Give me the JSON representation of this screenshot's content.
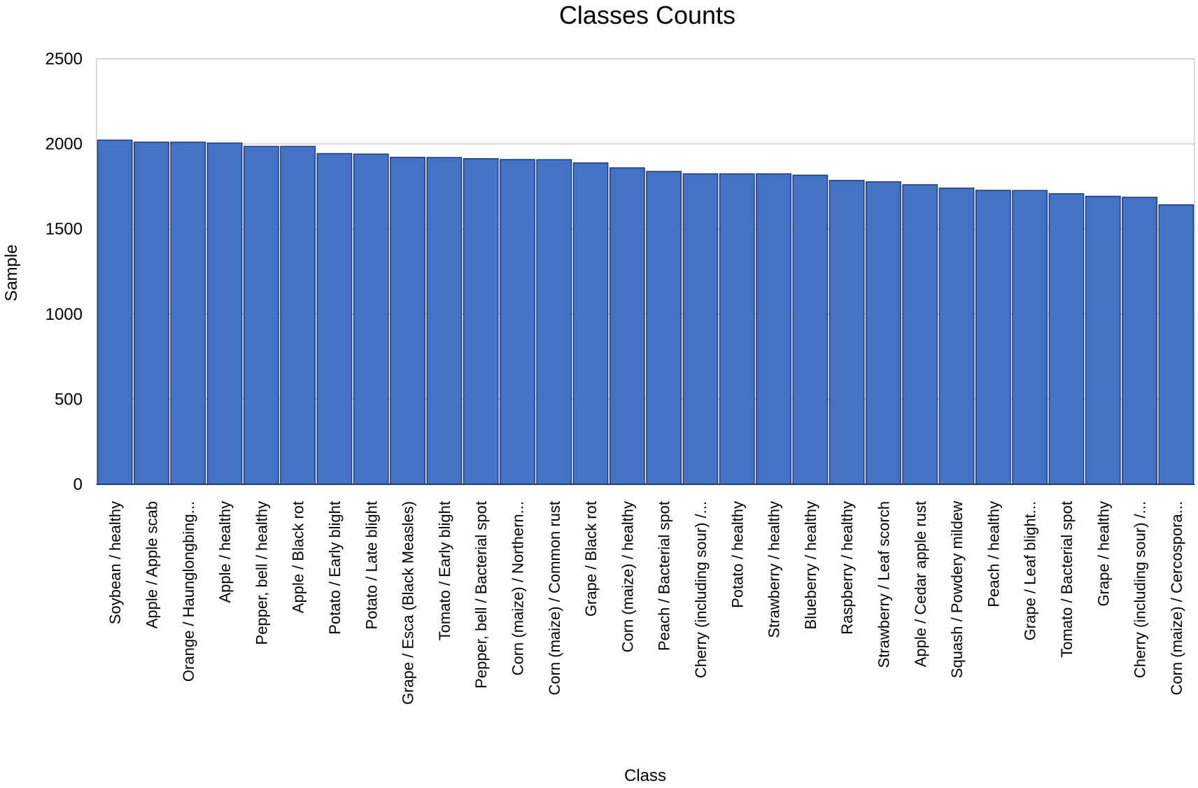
{
  "chart_data": {
    "type": "bar",
    "title": "Classes Counts",
    "xlabel": "Class",
    "ylabel": "Sample",
    "ylim": [
      0,
      2500
    ],
    "yticks": [
      "0",
      "500",
      "1000",
      "1500",
      "2000",
      "2500"
    ],
    "grid": true,
    "legend": "none",
    "bar_color": "#4472C4",
    "bar_edge_color": "#1F3A7A",
    "categories": [
      "Soybean / healthy",
      "Apple / Apple scab",
      "Orange / Haunglongbing...",
      "Apple / healthy",
      "Pepper, bell / healthy",
      "Apple / Black rot",
      "Potato / Early blight",
      "Potato / Late blight",
      "Grape / Esca (Black Measles)",
      "Tomato / Early blight",
      "Pepper, bell / Bacterial spot",
      "Corn (maize) / Northern...",
      "Corn (maize) / Common rust",
      "Grape / Black rot",
      "Corn (maize) / healthy",
      "Peach / Bacterial spot",
      "Cherry (including sour) /...",
      "Potato / healthy",
      "Strawberry / healthy",
      "Blueberry / healthy",
      "Raspberry / healthy",
      "Strawberry / Leaf scorch",
      "Apple / Cedar apple rust",
      "Squash / Powdery mildew",
      "Peach / healthy",
      "Grape / Leaf blight...",
      "Tomato / Bacterial spot",
      "Grape / healthy",
      "Cherry (including sour) /...",
      "Corn (maize) / Cercospora..."
    ],
    "values": [
      2022,
      2010,
      2010,
      2005,
      1985,
      1985,
      1943,
      1940,
      1921,
      1920,
      1913,
      1908,
      1907,
      1888,
      1859,
      1838,
      1824,
      1824,
      1824,
      1816,
      1785,
      1777,
      1760,
      1740,
      1727,
      1726,
      1707,
      1692,
      1686,
      1642
    ]
  }
}
